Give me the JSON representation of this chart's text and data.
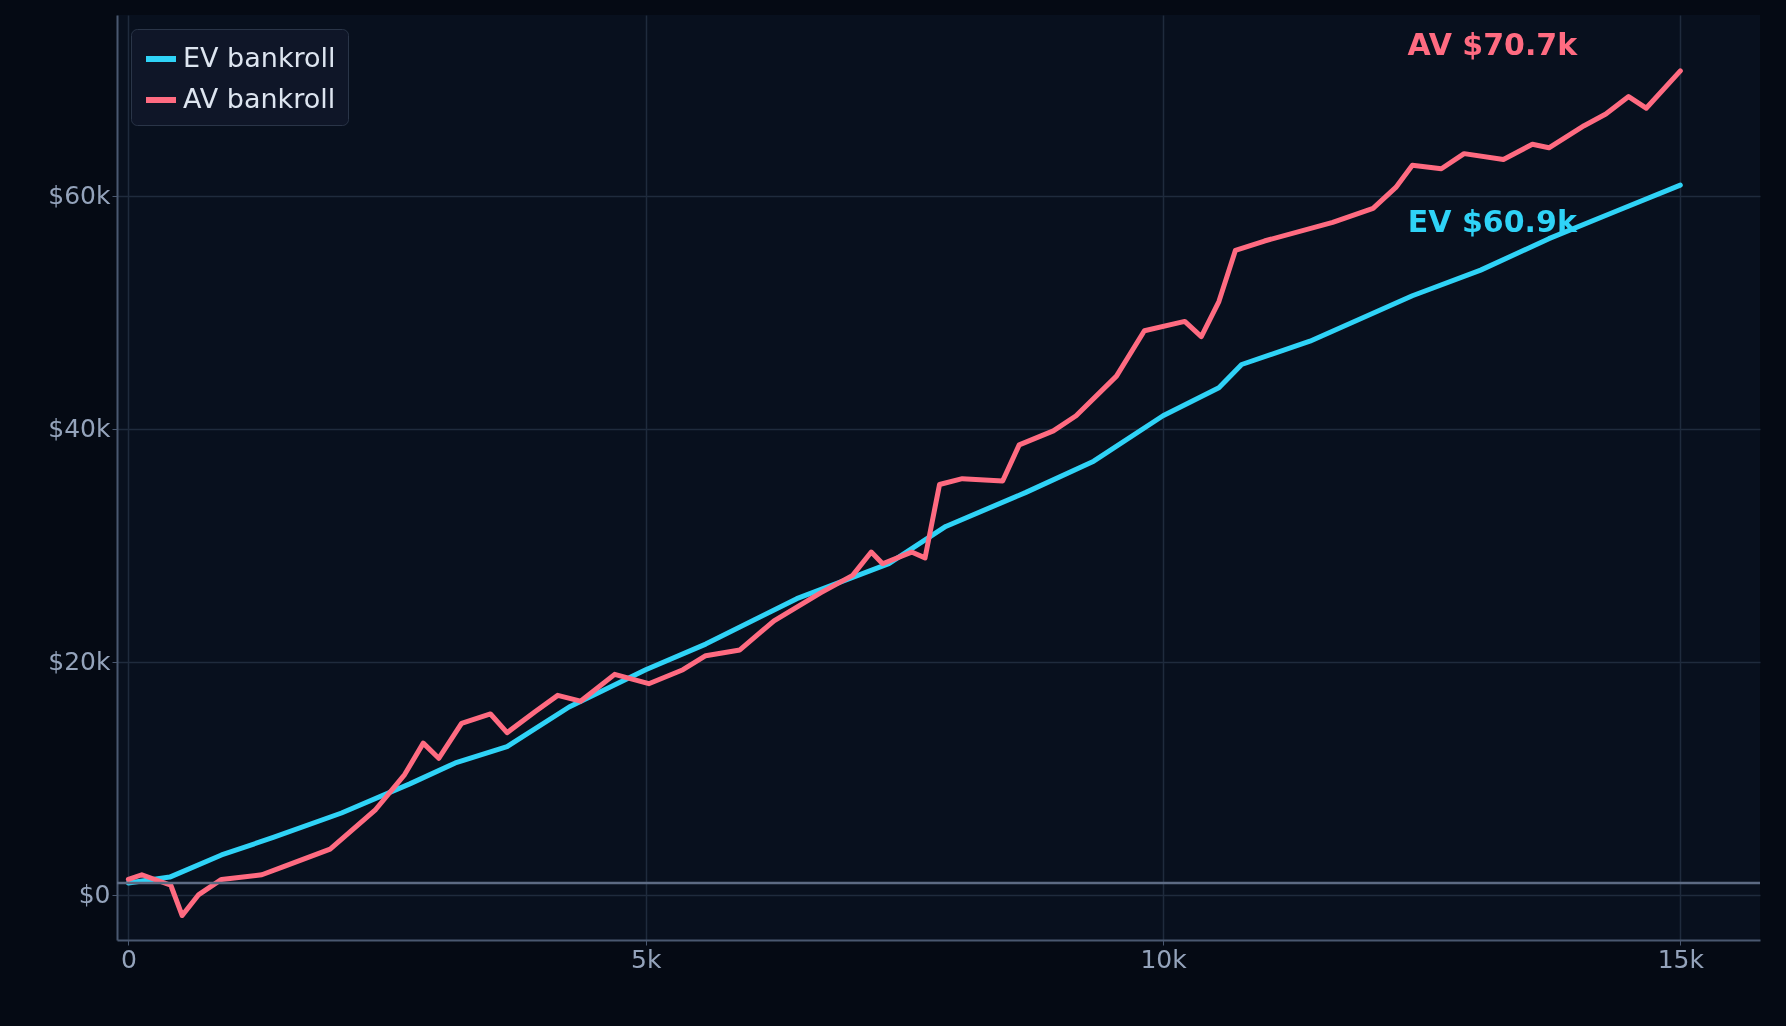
{
  "chart_data": {
    "type": "line",
    "xlim": [
      -110,
      15770
    ],
    "ylim": [
      -3900,
      75500
    ],
    "xticks": [
      0,
      {
        "value": 5000,
        "label": "5k"
      },
      {
        "value": 10000,
        "label": "10k"
      },
      {
        "value": 15000,
        "label": "15k"
      }
    ],
    "yticks": [
      {
        "value": 0,
        "label": "$0"
      },
      {
        "value": 20000,
        "label": "$20k"
      },
      {
        "value": 40000,
        "label": "$40k"
      },
      {
        "value": 60000,
        "label": "$60k"
      }
    ],
    "grid": true,
    "legend": "top left",
    "line_style": "solid",
    "marker": "none",
    "ref_lines": [
      {
        "axis": "y",
        "value": 1000,
        "color": "#5d6b84"
      }
    ],
    "annotations": [
      "AV $70.7k",
      "EV $60.9k"
    ],
    "series": [
      {
        "name": "EV bankroll",
        "color": "#2fd3f7",
        "x": [
          0,
          400,
          900,
          1400,
          2060,
          2720,
          3160,
          3660,
          4260,
          5000,
          5580,
          6460,
          7350,
          7900,
          8670,
          9330,
          10000,
          10540,
          10760,
          11420,
          12410,
          13070,
          13730,
          14390,
          15000
        ],
        "values": [
          1000,
          1500,
          3400,
          4900,
          7000,
          9500,
          11300,
          12700,
          16100,
          19300,
          21500,
          25400,
          28400,
          31600,
          34500,
          37200,
          41100,
          43500,
          45500,
          47500,
          51400,
          53600,
          56300,
          58700,
          60900
        ]
      },
      {
        "name": "AV bankroll",
        "color": "#ff6b81",
        "x": [
          0,
          130,
          410,
          520,
          680,
          900,
          1290,
          1500,
          1950,
          2390,
          2670,
          2850,
          3000,
          3220,
          3500,
          3660,
          3930,
          4150,
          4370,
          4700,
          5030,
          5360,
          5580,
          5910,
          6240,
          6690,
          7000,
          7180,
          7290,
          7570,
          7700,
          7840,
          8060,
          8450,
          8610,
          8940,
          9160,
          9550,
          9820,
          10210,
          10370,
          10540,
          10700,
          10980,
          11640,
          12030,
          12250,
          12410,
          12690,
          12910,
          13290,
          13570,
          13730,
          14070,
          14280,
          14500,
          14670,
          15000
        ],
        "values": [
          1300,
          1700,
          800,
          -1800,
          0,
          1300,
          1700,
          2400,
          3900,
          7300,
          10300,
          13000,
          11700,
          14700,
          15500,
          13900,
          15700,
          17100,
          16600,
          18900,
          18100,
          19300,
          20500,
          21000,
          23500,
          25900,
          27400,
          29400,
          28400,
          29400,
          28900,
          35200,
          35700,
          35500,
          38600,
          39800,
          41100,
          44500,
          48400,
          49200,
          47900,
          50900,
          55300,
          56100,
          57700,
          58900,
          60700,
          62600,
          62300,
          63600,
          63100,
          64400,
          64100,
          66000,
          67000,
          68500,
          67500,
          70700
        ]
      }
    ]
  }
}
